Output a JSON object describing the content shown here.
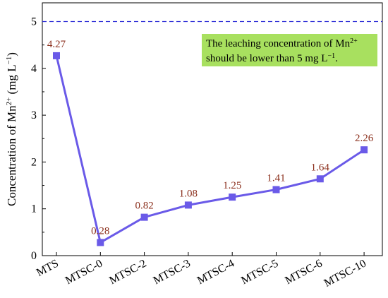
{
  "chart_data": {
    "type": "line",
    "categories": [
      "MTS",
      "MTSC-0",
      "MTSC-2",
      "MTSC-3",
      "MTSC-4",
      "MTSC-5",
      "MTSC-6",
      "MTSC-10"
    ],
    "values": [
      4.27,
      0.28,
      0.82,
      1.08,
      1.25,
      1.41,
      1.64,
      2.26
    ],
    "data_labels": [
      "4.27",
      "0.28",
      "0.82",
      "1.08",
      "1.25",
      "1.41",
      "1.64",
      "2.26"
    ],
    "xlabel": "",
    "ylabel": {
      "prefix": "Concentration of Mn",
      "sup": "2+",
      "mid": " (mg L",
      "sup2": "−1",
      "suffix": ")"
    },
    "ylim": [
      0,
      5.4
    ],
    "yticks": [
      0,
      1,
      2,
      3,
      4,
      5
    ],
    "reference_line": {
      "y": 5,
      "style": "dashed",
      "color": "#2a2ad6"
    },
    "annotation": {
      "line1_text": "The leaching concentration of Mn",
      "line1_sup": "2+",
      "line2_text": "should be lower than 5 mg L",
      "line2_sup": "−1",
      "line2_end": ".",
      "background": "#a8e05f"
    },
    "series_color": "#6a5ae8",
    "label_color": "#8b2f1c",
    "grid": false,
    "legend": "none"
  }
}
